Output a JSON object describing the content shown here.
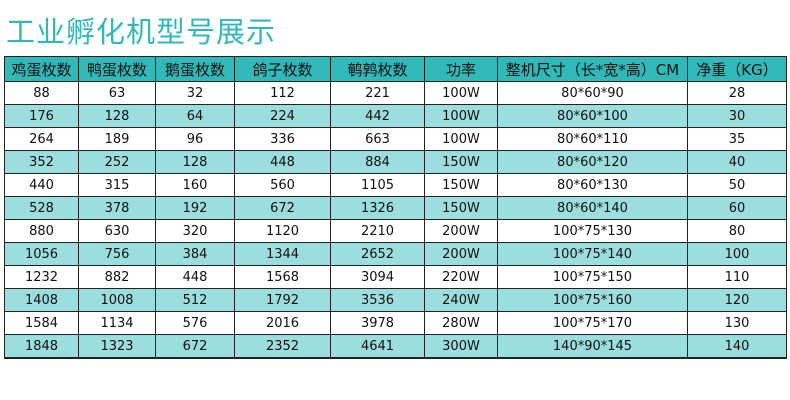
{
  "title": "工业孵化机型号展示",
  "colors": {
    "header": "#31b9b9",
    "alt_row": "#9cdedd",
    "title": "#33b8b8"
  },
  "headers": [
    "鸡蛋枚数",
    "鸭蛋枚数",
    "鹅蛋枚数",
    "鸽子枚数",
    "鹌鹑枚数",
    "功率",
    "整机尺寸（长*宽*高）CM",
    "净重（KG）"
  ],
  "rows": [
    [
      "88",
      "63",
      "32",
      "112",
      "221",
      "100W",
      "80*60*90",
      "28"
    ],
    [
      "176",
      "128",
      "64",
      "224",
      "442",
      "100W",
      "80*60*100",
      "30"
    ],
    [
      "264",
      "189",
      "96",
      "336",
      "663",
      "100W",
      "80*60*110",
      "35"
    ],
    [
      "352",
      "252",
      "128",
      "448",
      "884",
      "150W",
      "80*60*120",
      "40"
    ],
    [
      "440",
      "315",
      "160",
      "560",
      "1105",
      "150W",
      "80*60*130",
      "50"
    ],
    [
      "528",
      "378",
      "192",
      "672",
      "1326",
      "150W",
      "80*60*140",
      "60"
    ],
    [
      "880",
      "630",
      "320",
      "1120",
      "2210",
      "200W",
      "100*75*130",
      "80"
    ],
    [
      "1056",
      "756",
      "384",
      "1344",
      "2652",
      "200W",
      "100*75*140",
      "100"
    ],
    [
      "1232",
      "882",
      "448",
      "1568",
      "3094",
      "220W",
      "100*75*150",
      "110"
    ],
    [
      "1408",
      "1008",
      "512",
      "1792",
      "3536",
      "240W",
      "100*75*160",
      "120"
    ],
    [
      "1584",
      "1134",
      "576",
      "2016",
      "3978",
      "280W",
      "100*75*170",
      "130"
    ],
    [
      "1848",
      "1323",
      "672",
      "2352",
      "4641",
      "300W",
      "140*90*145",
      "140"
    ]
  ]
}
